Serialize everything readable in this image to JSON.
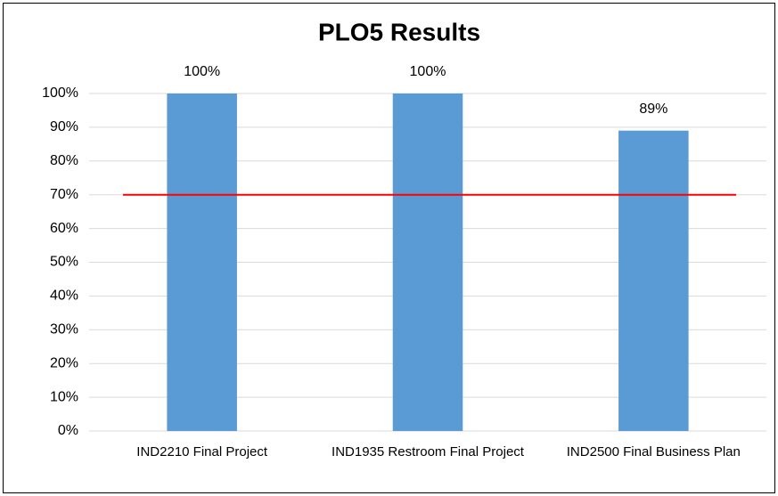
{
  "chart_data": {
    "type": "bar",
    "title": "PLO5 Results",
    "categories": [
      "IND2210 Final Project",
      "IND1935 Restroom Final Project",
      "IND2500 Final Business Plan"
    ],
    "values": [
      100,
      100,
      89
    ],
    "value_labels": [
      "100%",
      "100%",
      "89%"
    ],
    "color": "#5b9bd5",
    "ylim": [
      0,
      100
    ],
    "yticks": [
      {
        "value": 0,
        "label": "0%"
      },
      {
        "value": 10,
        "label": "10%"
      },
      {
        "value": 20,
        "label": "20%"
      },
      {
        "value": 30,
        "label": "30%"
      },
      {
        "value": 40,
        "label": "40%"
      },
      {
        "value": 50,
        "label": "50%"
      },
      {
        "value": 60,
        "label": "60%"
      },
      {
        "value": 70,
        "label": "70%"
      },
      {
        "value": 80,
        "label": "80%"
      },
      {
        "value": 90,
        "label": "90%"
      },
      {
        "value": 100,
        "label": "100%"
      }
    ],
    "grid": true,
    "reference_line": {
      "value": 70,
      "color": "#ff0000"
    }
  }
}
